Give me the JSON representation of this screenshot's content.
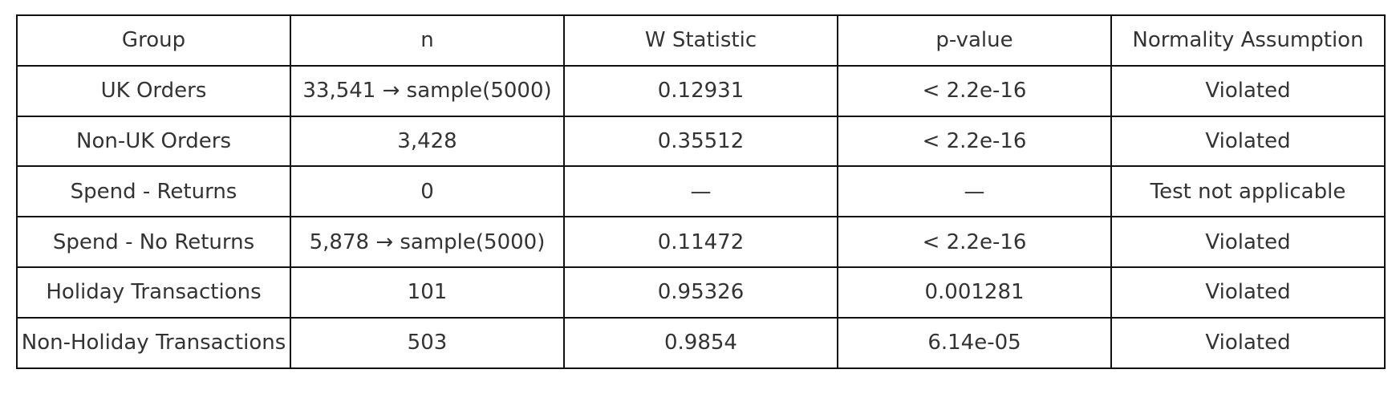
{
  "chart_data": {
    "type": "table",
    "columns": [
      "Group",
      "n",
      "W Statistic",
      "p-value",
      "Normality Assumption"
    ],
    "rows": [
      [
        "UK Orders",
        "33,541 → sample(5000)",
        "0.12931",
        "< 2.2e-16",
        "Violated"
      ],
      [
        "Non-UK Orders",
        "3,428",
        "0.35512",
        "< 2.2e-16",
        "Violated"
      ],
      [
        "Spend - Returns",
        "0",
        "—",
        "—",
        "Test not applicable"
      ],
      [
        "Spend - No Returns",
        "5,878 → sample(5000)",
        "0.11472",
        "< 2.2e-16",
        "Violated"
      ],
      [
        "Holiday Transactions",
        "101",
        "0.95326",
        "0.001281",
        "Violated"
      ],
      [
        "Non-Holiday Transactions",
        "503",
        "0.9854",
        "6.14e-05",
        "Violated"
      ]
    ]
  }
}
